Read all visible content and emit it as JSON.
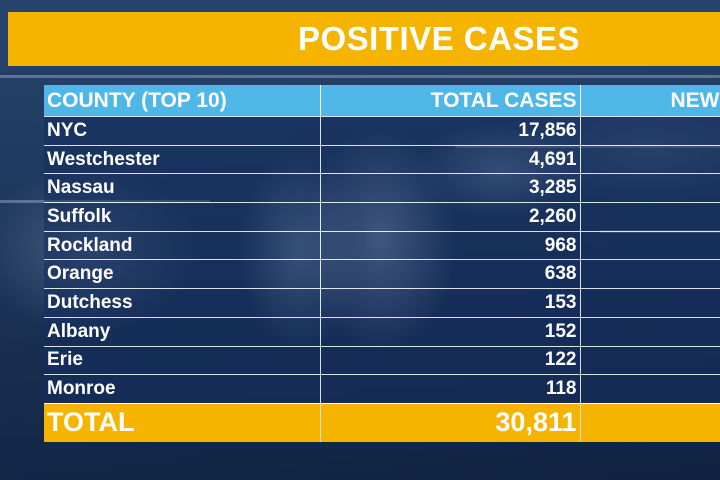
{
  "banner": {
    "title": "POSITIVE CASES",
    "color": "#f4b400"
  },
  "table": {
    "header_color": "#4fb7e8",
    "columns": [
      "COUNTY (TOP 10)",
      "TOTAL CASES",
      "NEW"
    ],
    "rows": [
      {
        "county": "NYC",
        "total": "17,856"
      },
      {
        "county": "Westchester",
        "total": "4,691"
      },
      {
        "county": "Nassau",
        "total": "3,285"
      },
      {
        "county": "Suffolk",
        "total": "2,260"
      },
      {
        "county": "Rockland",
        "total": "968"
      },
      {
        "county": "Orange",
        "total": "638"
      },
      {
        "county": "Dutchess",
        "total": "153"
      },
      {
        "county": "Albany",
        "total": "152"
      },
      {
        "county": "Erie",
        "total": "122"
      },
      {
        "county": "Monroe",
        "total": "118"
      }
    ],
    "total": {
      "label": "TOTAL",
      "value": "30,811"
    }
  }
}
